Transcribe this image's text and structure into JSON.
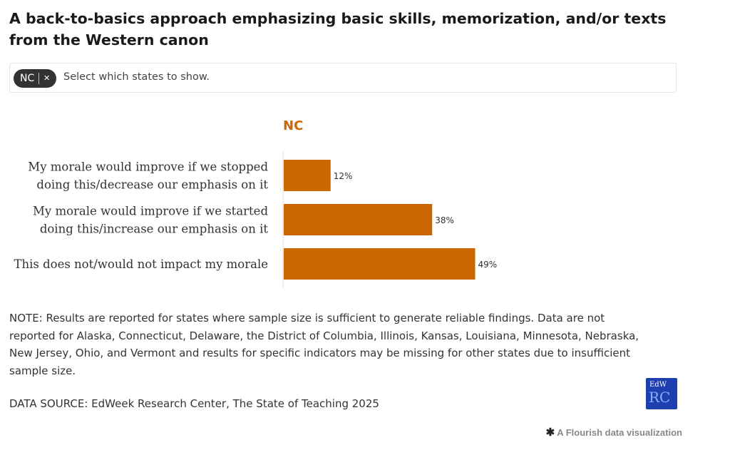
{
  "title": "A back-to-basics approach emphasizing basic skills, memorization, and/or texts from the Western canon",
  "filter": {
    "chip_label": "NC",
    "chip_close": "×",
    "placeholder": "Select which states to show."
  },
  "chart_data": {
    "type": "bar",
    "orientation": "horizontal",
    "title": "NC",
    "categories": [
      [
        "My morale would improve if we stopped",
        "doing this/decrease our emphasis on it"
      ],
      [
        "My morale would improve if we started",
        "doing this/increase our emphasis on it"
      ],
      [
        "This does not/would not impact my morale"
      ]
    ],
    "values": [
      12,
      38,
      49
    ],
    "value_labels": [
      "12%",
      "38%",
      "49%"
    ],
    "xlim": [
      0,
      100
    ],
    "grid": false,
    "legend": "none",
    "colors": {
      "bar": "#cc6600",
      "title": "#cc6600",
      "axis": "#e0e0e0"
    }
  },
  "note": "NOTE: Results are reported for states where sample size is sufficient to generate reliable findings. Data are not reported for Alaska, Connecticut, Delaware, the District of Columbia, Illinois, Kansas, Louisiana, Minnesota, Nebraska, New Jersey, Ohio, and Vermont and results for specific indicators may be missing for other states due to insufficient sample size.",
  "source": "DATA SOURCE: EdWeek Research Center, The State of Teaching 2025",
  "logo": {
    "line1": "EdW",
    "line2": "RC"
  },
  "flourish": {
    "icon": "flourish-asterisk-icon",
    "text": "A Flourish data visualization"
  }
}
